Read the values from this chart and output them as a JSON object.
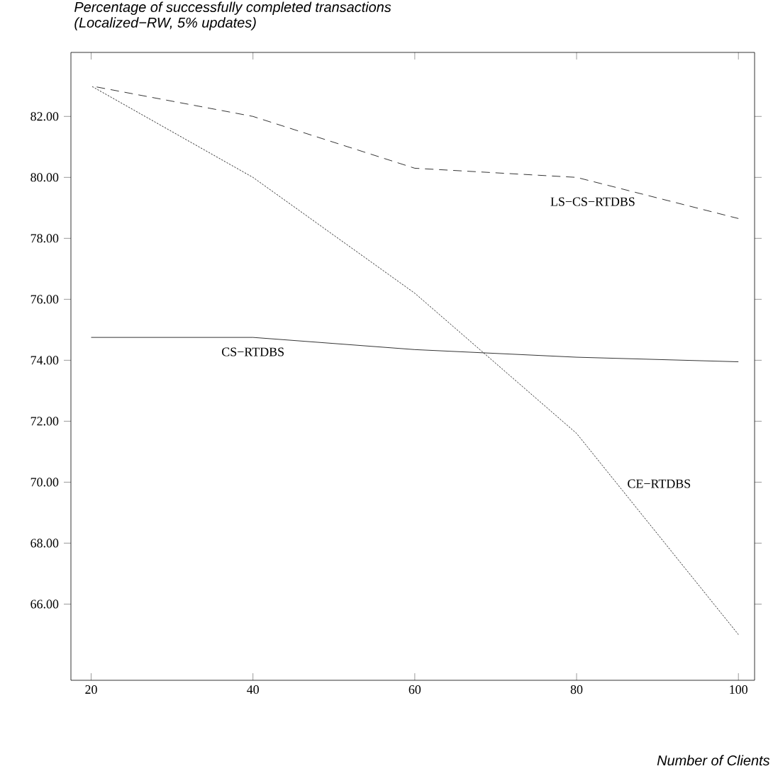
{
  "chart_data": {
    "type": "line",
    "title": "Percentage of successfully completed transactions",
    "subtitle": "(Localized−RW, 5% updates)",
    "xlabel": "Number of Clients",
    "x": [
      20,
      40,
      60,
      80,
      100
    ],
    "series": [
      {
        "name": "LS−CS−RTDBS",
        "color": "#000000",
        "line_style": "dashed",
        "values": [
          83.0,
          82.0,
          80.3,
          80.0,
          78.65
        ]
      },
      {
        "name": "CE−RTDBS",
        "color": "#000000",
        "line_style": "dotted",
        "values": [
          83.0,
          80.0,
          76.2,
          71.6,
          65.0
        ]
      },
      {
        "name": "CS−RTDBS",
        "color": "#000000",
        "line_style": "solid",
        "values": [
          74.75,
          74.75,
          74.35,
          74.1,
          73.95
        ]
      }
    ],
    "xlim": [
      17.5,
      102
    ],
    "ylim": [
      63.5,
      84.1
    ],
    "xticks": [
      20,
      40,
      60,
      80,
      100
    ],
    "yticks": [
      {
        "value": 66,
        "label": "66.00"
      },
      {
        "value": 68,
        "label": "68.00"
      },
      {
        "value": 70,
        "label": "70.00"
      },
      {
        "value": 72,
        "label": "72.00"
      },
      {
        "value": 74,
        "label": "74.00"
      },
      {
        "value": 76,
        "label": "76.00"
      },
      {
        "value": 78,
        "label": "78.00"
      },
      {
        "value": 80,
        "label": "80.00"
      },
      {
        "value": 82,
        "label": "82.00"
      }
    ],
    "grid": false,
    "marker": "none"
  }
}
